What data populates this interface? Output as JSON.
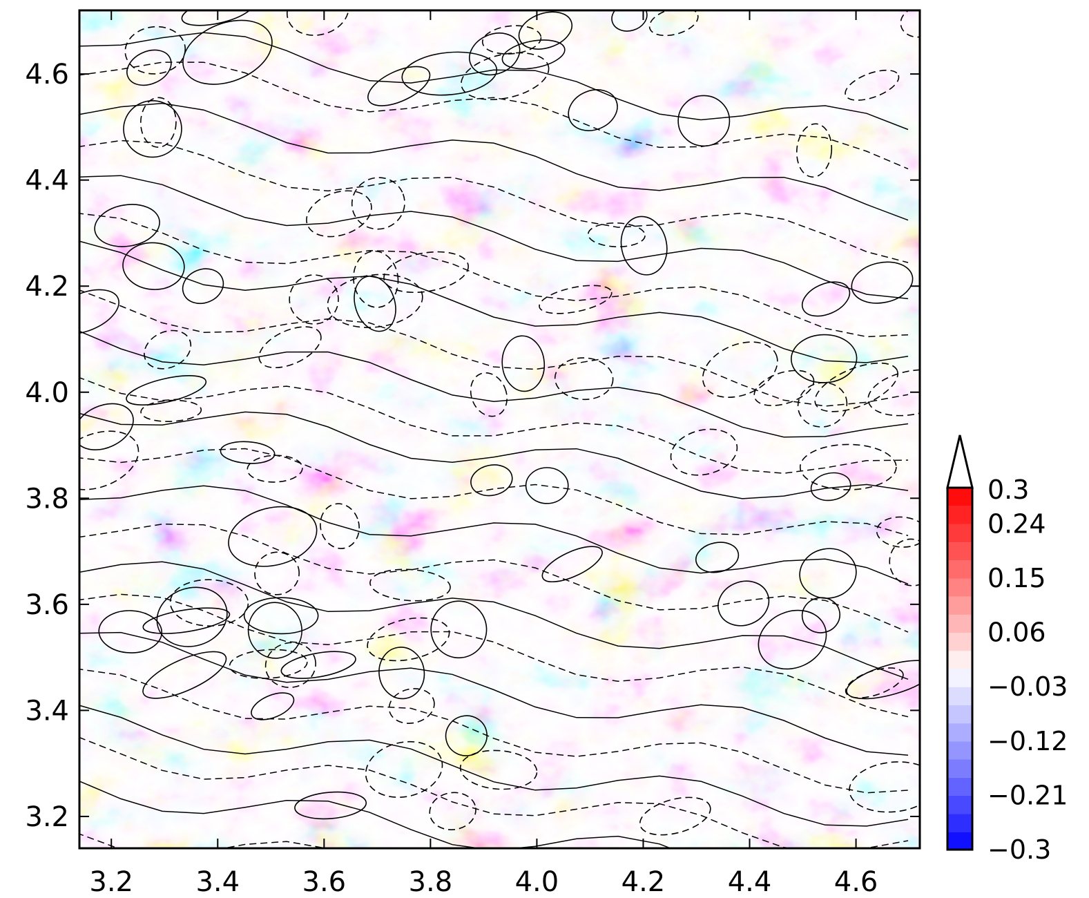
{
  "chart_data": {
    "type": "heatmap",
    "title": "",
    "xlabel": "",
    "ylabel": "",
    "xlim": [
      3.14,
      4.72
    ],
    "ylim": [
      3.14,
      4.72
    ],
    "x_ticks": [
      "3.2",
      "3.4",
      "3.6",
      "3.8",
      "4.0",
      "4.2",
      "4.4",
      "4.6"
    ],
    "x_tick_values": [
      3.2,
      3.4,
      3.6,
      3.8,
      4.0,
      4.2,
      4.4,
      4.6
    ],
    "y_ticks": [
      "4.6",
      "4.4",
      "4.2",
      "4.0",
      "3.8",
      "3.6",
      "3.4",
      "3.2"
    ],
    "y_tick_values": [
      4.6,
      4.4,
      4.2,
      4.0,
      3.8,
      3.6,
      3.4,
      3.2
    ],
    "colorbar": {
      "labels": [
        "0.3",
        "0.24",
        "0.15",
        "0.06",
        "−0.03",
        "−0.12",
        "−0.21",
        "−0.3"
      ],
      "label_values": [
        0.3,
        0.24,
        0.15,
        0.06,
        -0.03,
        -0.12,
        -0.21,
        -0.3
      ],
      "range": [
        -0.3,
        0.3
      ],
      "levels": 20,
      "extend": "max",
      "colors": {
        "low": "#0000ff",
        "mid": "#ffffff",
        "high": "#ff0000"
      }
    },
    "contours": {
      "solid_color": "#000000",
      "dashed_color": "#000000"
    }
  }
}
